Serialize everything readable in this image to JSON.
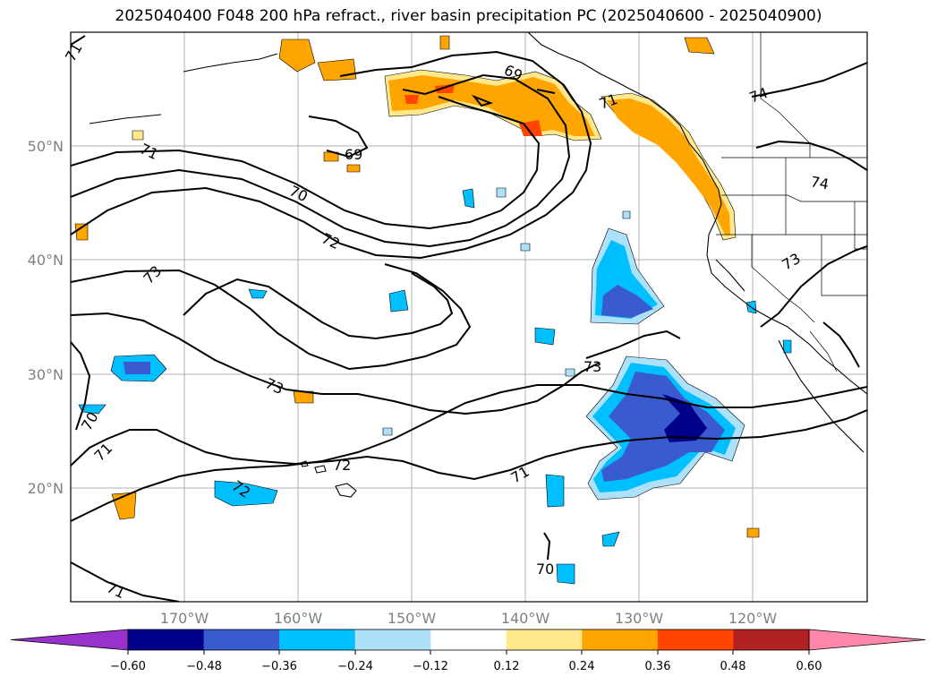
{
  "title": "2025040400 F048 200 hPa refract., river basin precipitation PC (2025040600 - 2025040900)",
  "lat_labels": [
    "50°N",
    "40°N",
    "30°N",
    "20°N"
  ],
  "lon_labels": [
    "170°W",
    "160°W",
    "150°W",
    "140°W",
    "130°W",
    "120°W"
  ],
  "colorbar": {
    "ticks": [
      "−0.60",
      "−0.48",
      "−0.36",
      "−0.24",
      "−0.12",
      "0.12",
      "0.24",
      "0.36",
      "0.48",
      "0.60"
    ],
    "colors": [
      "#9932CC",
      "#00008B",
      "#3A5BD0",
      "#00BFFF",
      "#ADE1FA",
      "#FFFFFF",
      "#FFE88C",
      "#FFA500",
      "#FF4500",
      "#B22222",
      "#FF88AA"
    ]
  },
  "contour_labels": [
    "71",
    "71",
    "69",
    "69",
    "70",
    "72",
    "73",
    "73",
    "73",
    "71",
    "70",
    "71",
    "72",
    "71",
    "72",
    "71",
    "70",
    "74",
    "74",
    "73"
  ]
}
